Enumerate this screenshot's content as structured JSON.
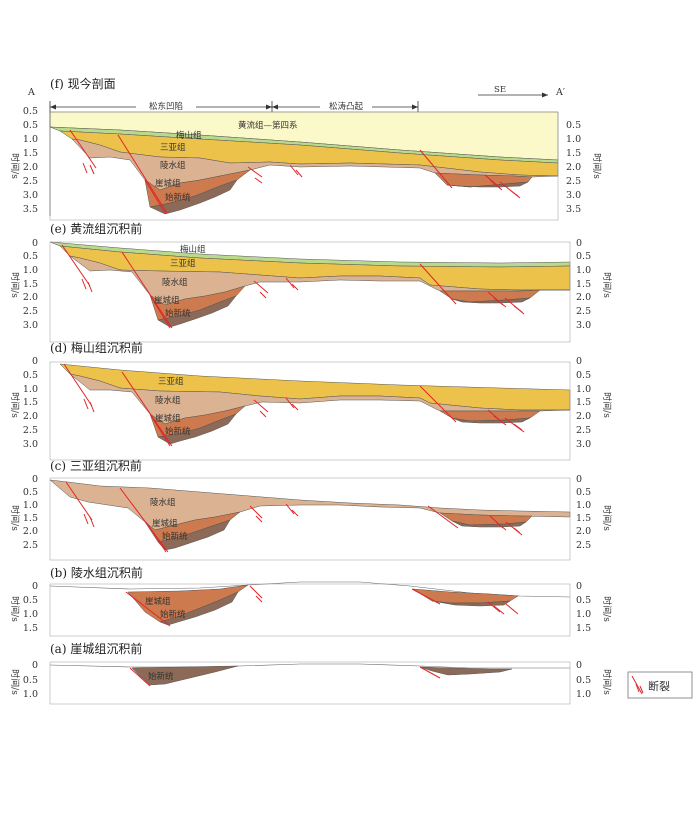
{
  "header": {
    "point_a": "A",
    "point_a_prime": "A′",
    "direction": "SE",
    "region_depression": "松东凹陷",
    "region_uplift": "松涛凸起"
  },
  "y_axis_label": "时间/s",
  "legend": {
    "fault_label": "断裂"
  },
  "colors": {
    "huangliu_quaternary": "#fbf8c9",
    "meishan": "#b9d98d",
    "sanya": "#ecc24a",
    "lingshui": "#dcb392",
    "yacheng": "#cd7a4e",
    "shixinxi": "#8c6a57",
    "fault": "#e0262a"
  },
  "panels": [
    {
      "title": "(f) 现今剖面",
      "ticks_left": [
        "0.5",
        "1.0",
        "1.5",
        "2.0",
        "2.5",
        "3.0",
        "3.5"
      ],
      "ticks_right": [
        "0.5",
        "1.0",
        "1.5",
        "2.0",
        "2.5",
        "3.0",
        "3.5"
      ],
      "labels": [
        "黄流组—第四系",
        "梅山组",
        "三亚组",
        "陵水组",
        "崖城组",
        "始新统"
      ]
    },
    {
      "title": "(e) 黄流组沉积前",
      "ticks_left": [
        "0",
        "0.5",
        "1.0",
        "1.5",
        "2.0",
        "2.5",
        "3.0"
      ],
      "ticks_right": [
        "0",
        "0.5",
        "1.0",
        "1.5",
        "2.0",
        "2.5",
        "3.0"
      ],
      "labels": [
        "梅山组",
        "三亚组",
        "陵水组",
        "崖城组",
        "始新统"
      ]
    },
    {
      "title": "(d) 梅山组沉积前",
      "ticks_left": [
        "0",
        "0.5",
        "1.0",
        "1.5",
        "2.0",
        "2.5",
        "3.0"
      ],
      "ticks_right": [
        "0",
        "0.5",
        "1.0",
        "1.5",
        "2.0",
        "2.5",
        "3.0"
      ],
      "labels": [
        "三亚组",
        "陵水组",
        "崖城组",
        "始新统"
      ]
    },
    {
      "title": "(c) 三亚组沉积前",
      "ticks_left": [
        "0",
        "0.5",
        "1.0",
        "1.5",
        "2.0",
        "2.5"
      ],
      "ticks_right": [
        "0",
        "0.5",
        "1.0",
        "1.5",
        "2.0",
        "2.5"
      ],
      "labels": [
        "陵水组",
        "崖城组",
        "始新统"
      ]
    },
    {
      "title": "(b) 陵水组沉积前",
      "ticks_left": [
        "0",
        "0.5",
        "1.0",
        "1.5"
      ],
      "ticks_right": [
        "0",
        "0.5",
        "1.0",
        "1.5"
      ],
      "labels": [
        "崖城组",
        "始新统"
      ]
    },
    {
      "title": "(a) 崖城组沉积前",
      "ticks_left": [
        "0",
        "0.5",
        "1.0"
      ],
      "ticks_right": [
        "0",
        "0.5",
        "1.0"
      ],
      "labels": [
        "始新统"
      ]
    }
  ]
}
